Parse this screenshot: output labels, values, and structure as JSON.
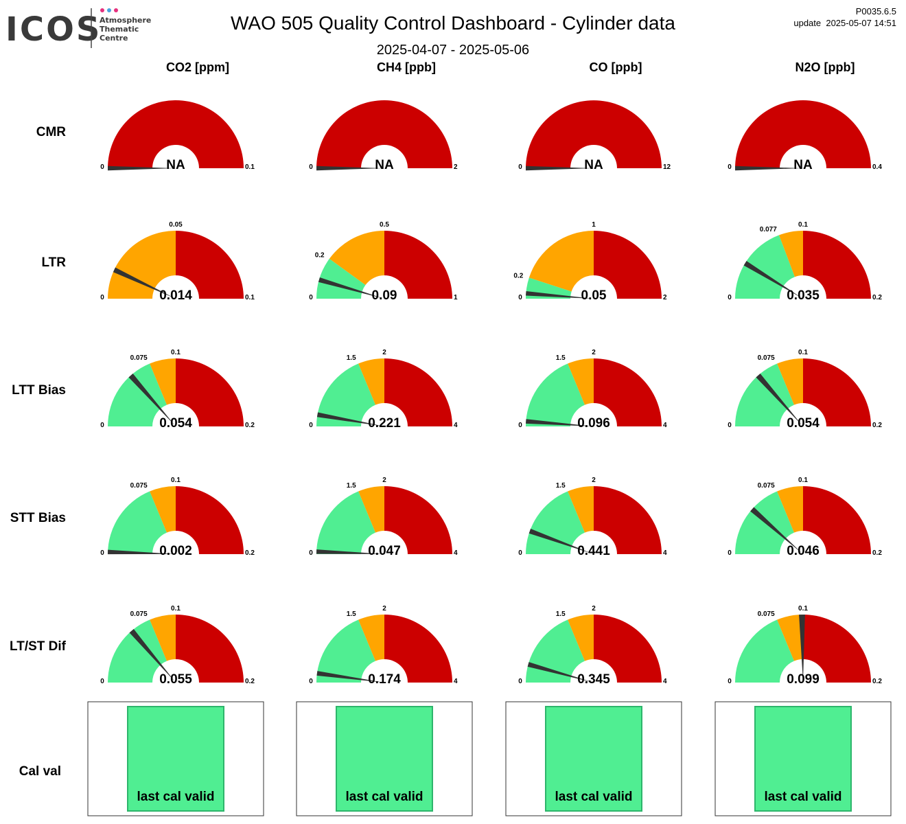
{
  "header": {
    "logo_text": "ICOS",
    "logo_lines": [
      "Atmosphere",
      "Thematic",
      "Centre"
    ],
    "logo_dot_colors": [
      "#e5307e",
      "#4aa3df",
      "#e5307e"
    ],
    "title": "WAO 505 Quality Control Dashboard - Cylinder data",
    "subtitle": "2025-04-07 - 2025-05-06",
    "version": "P0035.6.5",
    "update": "update  2025-05-07 14:51"
  },
  "colors": {
    "green": "#50ee92",
    "orange": "#ffa500",
    "red": "#cc0000",
    "needle": "#333333",
    "cal_fill": "#50ee92",
    "cal_border": "#2db56b"
  },
  "chart_data": {
    "type": "gauge-grid",
    "columns": [
      "CO2 [ppm]",
      "CH4 [ppb]",
      "CO [ppb]",
      "N2O [ppb]"
    ],
    "rows": [
      "CMR",
      "LTR",
      "LTT Bias",
      "STT Bias",
      "LT/ST Dif"
    ],
    "gauges": [
      [
        {
          "min": "0",
          "max": "0.1",
          "value": null,
          "display": "NA",
          "max_value": 0.1,
          "thresholds": []
        },
        {
          "min": "0",
          "max": "0.1",
          "value": 0.014,
          "display": "0.014",
          "max_value": 0.1,
          "thresholds": [
            {
              "v": 0.05,
              "label": "0.05"
            }
          ],
          "bands": [
            "orange",
            "red"
          ]
        },
        {
          "min": "0",
          "max": "0.2",
          "value": 0.054,
          "display": "0.054",
          "max_value": 0.2,
          "thresholds": [
            {
              "v": 0.075,
              "label": "0.075"
            },
            {
              "v": 0.1,
              "label": "0.1"
            }
          ],
          "bands": [
            "green",
            "orange",
            "red"
          ]
        },
        {
          "min": "0",
          "max": "0.2",
          "value": 0.002,
          "display": "0.002",
          "max_value": 0.2,
          "thresholds": [
            {
              "v": 0.075,
              "label": "0.075"
            },
            {
              "v": 0.1,
              "label": "0.1"
            }
          ],
          "bands": [
            "green",
            "orange",
            "red"
          ]
        },
        {
          "min": "0",
          "max": "0.2",
          "value": 0.055,
          "display": "0.055",
          "max_value": 0.2,
          "thresholds": [
            {
              "v": 0.075,
              "label": "0.075"
            },
            {
              "v": 0.1,
              "label": "0.1"
            }
          ],
          "bands": [
            "green",
            "orange",
            "red"
          ]
        }
      ],
      [
        {
          "min": "0",
          "max": "2",
          "value": null,
          "display": "NA",
          "max_value": 2,
          "thresholds": []
        },
        {
          "min": "0",
          "max": "1",
          "value": 0.09,
          "display": "0.09",
          "max_value": 1,
          "thresholds": [
            {
              "v": 0.2,
              "label": "0.2"
            },
            {
              "v": 0.5,
              "label": "0.5"
            }
          ],
          "bands": [
            "green",
            "orange",
            "red"
          ]
        },
        {
          "min": "0",
          "max": "4",
          "value": 0.221,
          "display": "0.221",
          "max_value": 4,
          "thresholds": [
            {
              "v": 1.5,
              "label": "1.5"
            },
            {
              "v": 2,
              "label": "2"
            }
          ],
          "bands": [
            "green",
            "orange",
            "red"
          ]
        },
        {
          "min": "0",
          "max": "4",
          "value": 0.047,
          "display": "0.047",
          "max_value": 4,
          "thresholds": [
            {
              "v": 1.5,
              "label": "1.5"
            },
            {
              "v": 2,
              "label": "2"
            }
          ],
          "bands": [
            "green",
            "orange",
            "red"
          ]
        },
        {
          "min": "0",
          "max": "4",
          "value": 0.174,
          "display": "0.174",
          "max_value": 4,
          "thresholds": [
            {
              "v": 1.5,
              "label": "1.5"
            },
            {
              "v": 2,
              "label": "2"
            }
          ],
          "bands": [
            "green",
            "orange",
            "red"
          ]
        }
      ],
      [
        {
          "min": "0",
          "max": "12",
          "value": null,
          "display": "NA",
          "max_value": 12,
          "thresholds": []
        },
        {
          "min": "0",
          "max": "2",
          "value": 0.05,
          "display": "0.05",
          "max_value": 2,
          "thresholds": [
            {
              "v": 0.2,
              "label": "0.2"
            },
            {
              "v": 1,
              "label": "1"
            }
          ],
          "bands": [
            "green",
            "orange",
            "red"
          ]
        },
        {
          "min": "0",
          "max": "4",
          "value": 0.096,
          "display": "0.096",
          "max_value": 4,
          "thresholds": [
            {
              "v": 1.5,
              "label": "1.5"
            },
            {
              "v": 2,
              "label": "2"
            }
          ],
          "bands": [
            "green",
            "orange",
            "red"
          ]
        },
        {
          "min": "0",
          "max": "4",
          "value": 0.441,
          "display": "0.441",
          "max_value": 4,
          "thresholds": [
            {
              "v": 1.5,
              "label": "1.5"
            },
            {
              "v": 2,
              "label": "2"
            }
          ],
          "bands": [
            "green",
            "orange",
            "red"
          ]
        },
        {
          "min": "0",
          "max": "4",
          "value": 0.345,
          "display": "0.345",
          "max_value": 4,
          "thresholds": [
            {
              "v": 1.5,
              "label": "1.5"
            },
            {
              "v": 2,
              "label": "2"
            }
          ],
          "bands": [
            "green",
            "orange",
            "red"
          ]
        }
      ],
      [
        {
          "min": "0",
          "max": "0.4",
          "value": null,
          "display": "NA",
          "max_value": 0.4,
          "thresholds": []
        },
        {
          "min": "0",
          "max": "0.2",
          "value": 0.035,
          "display": "0.035",
          "max_value": 0.2,
          "thresholds": [
            {
              "v": 0.077,
              "label": "0.077"
            },
            {
              "v": 0.1,
              "label": "0.1"
            }
          ],
          "bands": [
            "green",
            "orange",
            "red"
          ]
        },
        {
          "min": "0",
          "max": "0.2",
          "value": 0.054,
          "display": "0.054",
          "max_value": 0.2,
          "thresholds": [
            {
              "v": 0.075,
              "label": "0.075"
            },
            {
              "v": 0.1,
              "label": "0.1"
            }
          ],
          "bands": [
            "green",
            "orange",
            "red"
          ]
        },
        {
          "min": "0",
          "max": "0.2",
          "value": 0.046,
          "display": "0.046",
          "max_value": 0.2,
          "thresholds": [
            {
              "v": 0.075,
              "label": "0.075"
            },
            {
              "v": 0.1,
              "label": "0.1"
            }
          ],
          "bands": [
            "green",
            "orange",
            "red"
          ]
        },
        {
          "min": "0",
          "max": "0.2",
          "value": 0.099,
          "display": "0.099",
          "max_value": 0.2,
          "thresholds": [
            {
              "v": 0.075,
              "label": "0.075"
            },
            {
              "v": 0.1,
              "label": "0.1"
            }
          ],
          "bands": [
            "green",
            "orange",
            "red"
          ]
        }
      ]
    ],
    "cal_val_row": "Cal val",
    "cal_val": [
      "last cal valid",
      "last cal valid",
      "last cal valid",
      "last cal valid"
    ]
  }
}
